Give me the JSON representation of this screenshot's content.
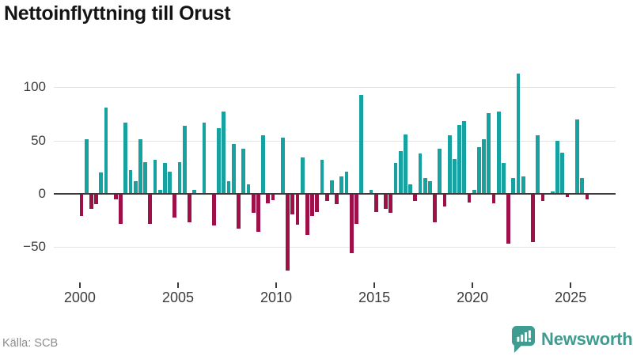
{
  "title": "Nettoinflyttning till Orust",
  "source_note": "Källa: SCB",
  "branding": {
    "wordmark": "Newsworthy",
    "icon": "newsworthy-speech-bubble-chart-icon"
  },
  "colors": {
    "positive_bar": "#15a2a0",
    "negative_bar": "#9e1148",
    "brand_teal": "#3e9c90",
    "title_text": "#141414",
    "axis_text": "#3c3c3c",
    "gridline": "#e3e3e3",
    "zero_line": "#3a3a3a",
    "source_text": "#8c8c8c",
    "background": "#ffffff"
  },
  "y_axis": {
    "ticks": [
      100,
      50,
      0,
      -50
    ],
    "tick_labels": [
      "100",
      "50",
      "0",
      "−50"
    ]
  },
  "x_axis": {
    "tick_years": [
      2000,
      2005,
      2010,
      2015,
      2020,
      2025
    ],
    "tick_labels": [
      "2000",
      "2005",
      "2010",
      "2015",
      "2020",
      "2025"
    ]
  },
  "chart_data": {
    "type": "bar",
    "title": "Nettoinflyttning till Orust",
    "xlabel": "",
    "ylabel": "",
    "ylim": [
      -75,
      120
    ],
    "grid": "horizontal",
    "frequency": "quarterly",
    "x_start": "2000 Q1",
    "x_end": "2025 Q4",
    "x": [
      "2000 Q1",
      "2000 Q2",
      "2000 Q3",
      "2000 Q4",
      "2001 Q1",
      "2001 Q2",
      "2001 Q3",
      "2001 Q4",
      "2002 Q1",
      "2002 Q2",
      "2002 Q3",
      "2002 Q4",
      "2003 Q1",
      "2003 Q2",
      "2003 Q3",
      "2003 Q4",
      "2004 Q1",
      "2004 Q2",
      "2004 Q3",
      "2004 Q4",
      "2005 Q1",
      "2005 Q2",
      "2005 Q3",
      "2005 Q4",
      "2006 Q1",
      "2006 Q2",
      "2006 Q3",
      "2006 Q4",
      "2007 Q1",
      "2007 Q2",
      "2007 Q3",
      "2007 Q4",
      "2008 Q1",
      "2008 Q2",
      "2008 Q3",
      "2008 Q4",
      "2009 Q1",
      "2009 Q2",
      "2009 Q3",
      "2009 Q4",
      "2010 Q1",
      "2010 Q2",
      "2010 Q3",
      "2010 Q4",
      "2011 Q1",
      "2011 Q2",
      "2011 Q3",
      "2011 Q4",
      "2012 Q1",
      "2012 Q2",
      "2012 Q3",
      "2012 Q4",
      "2013 Q1",
      "2013 Q2",
      "2013 Q3",
      "2013 Q4",
      "2014 Q1",
      "2014 Q2",
      "2014 Q3",
      "2014 Q4",
      "2015 Q1",
      "2015 Q2",
      "2015 Q3",
      "2015 Q4",
      "2016 Q1",
      "2016 Q2",
      "2016 Q3",
      "2016 Q4",
      "2017 Q1",
      "2017 Q2",
      "2017 Q3",
      "2017 Q4",
      "2018 Q1",
      "2018 Q2",
      "2018 Q3",
      "2018 Q4",
      "2019 Q1",
      "2019 Q2",
      "2019 Q3",
      "2019 Q4",
      "2020 Q1",
      "2020 Q2",
      "2020 Q3",
      "2020 Q4",
      "2021 Q1",
      "2021 Q2",
      "2021 Q3",
      "2021 Q4",
      "2022 Q1",
      "2022 Q2",
      "2022 Q3",
      "2022 Q4",
      "2023 Q1",
      "2023 Q2",
      "2023 Q3",
      "2023 Q4",
      "2024 Q1",
      "2024 Q2",
      "2024 Q3",
      "2024 Q4",
      "2025 Q1",
      "2025 Q2",
      "2025 Q3",
      "2025 Q4"
    ],
    "values": [
      -21,
      51,
      -14,
      -10,
      20,
      81,
      0,
      -5,
      -28,
      67,
      22,
      12,
      51,
      30,
      -28,
      32,
      4,
      29,
      21,
      -22,
      30,
      64,
      -27,
      4,
      1,
      67,
      0,
      -30,
      62,
      77,
      12,
      47,
      -33,
      42,
      9,
      -18,
      -36,
      55,
      -9,
      -6,
      0,
      53,
      -72,
      -19,
      -29,
      34,
      -39,
      -21,
      -17,
      32,
      -7,
      13,
      -10,
      16,
      21,
      -56,
      -28,
      93,
      0,
      4,
      -17,
      0,
      -14,
      -18,
      29,
      40,
      56,
      9,
      -7,
      38,
      15,
      12,
      -27,
      42,
      -12,
      55,
      33,
      65,
      68,
      -8,
      4,
      44,
      51,
      76,
      -9,
      77,
      29,
      -47,
      15,
      113,
      16,
      0,
      -45,
      55,
      -7,
      0,
      2,
      50,
      39,
      -3,
      0,
      70,
      15,
      -5
    ]
  }
}
